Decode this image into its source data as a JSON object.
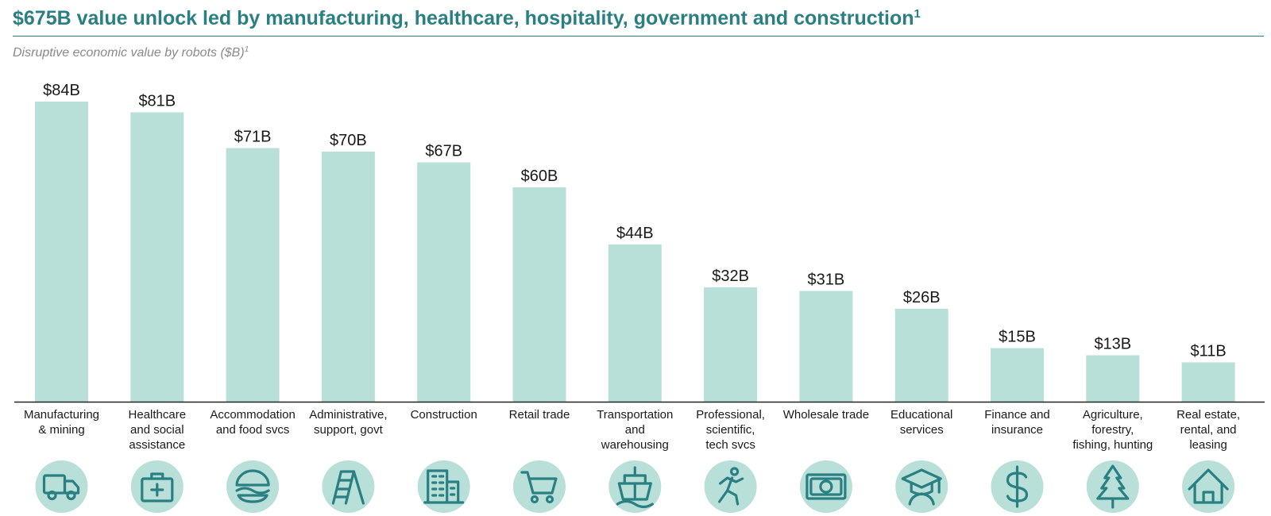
{
  "header": {
    "title": "$675B value unlock led by manufacturing, healthcare, hospitality, government and construction",
    "title_footnote": "1",
    "subtitle": "Disruptive economic value by robots ($B)",
    "subtitle_footnote": "1"
  },
  "colors": {
    "title": "#2a7f83",
    "bar": "#b8dfd8",
    "icon_circle": "#b8dfd8",
    "icon_stroke": "#2a7f83",
    "axis": "#222222"
  },
  "chart_data": {
    "type": "bar",
    "categories": [
      [
        "Manufacturing",
        "& mining"
      ],
      [
        "Healthcare",
        "and social",
        "assistance"
      ],
      [
        "Accommodation",
        "and food svcs"
      ],
      [
        "Administrative,",
        "support, govt"
      ],
      [
        "Construction"
      ],
      [
        "Retail trade"
      ],
      [
        "Transportation",
        "and",
        "warehousing"
      ],
      [
        "Professional,",
        "scientific,",
        "tech svcs"
      ],
      [
        "Wholesale trade"
      ],
      [
        "Educational",
        "services"
      ],
      [
        "Finance and",
        "insurance"
      ],
      [
        "Agriculture,",
        "forestry,",
        "fishing, hunting"
      ],
      [
        "Real estate,",
        "rental, and",
        "leasing"
      ]
    ],
    "values": [
      84,
      81,
      71,
      70,
      67,
      60,
      44,
      32,
      31,
      26,
      15,
      13,
      11
    ],
    "value_labels": [
      "$84B",
      "$81B",
      "$71B",
      "$70B",
      "$67B",
      "$60B",
      "$44B",
      "$32B",
      "$31B",
      "$26B",
      "$15B",
      "$13B",
      "$11B"
    ],
    "icons": [
      "truck-icon",
      "first-aid-kit-icon",
      "food-bowl-icon",
      "ladder-icon",
      "building-icon",
      "shopping-cart-icon",
      "ship-icon",
      "running-person-icon",
      "cash-icon",
      "graduate-icon",
      "dollar-sign-icon",
      "pine-tree-icon",
      "house-icon"
    ],
    "ylim": [
      0,
      84
    ],
    "grid": false,
    "legend": "none"
  }
}
